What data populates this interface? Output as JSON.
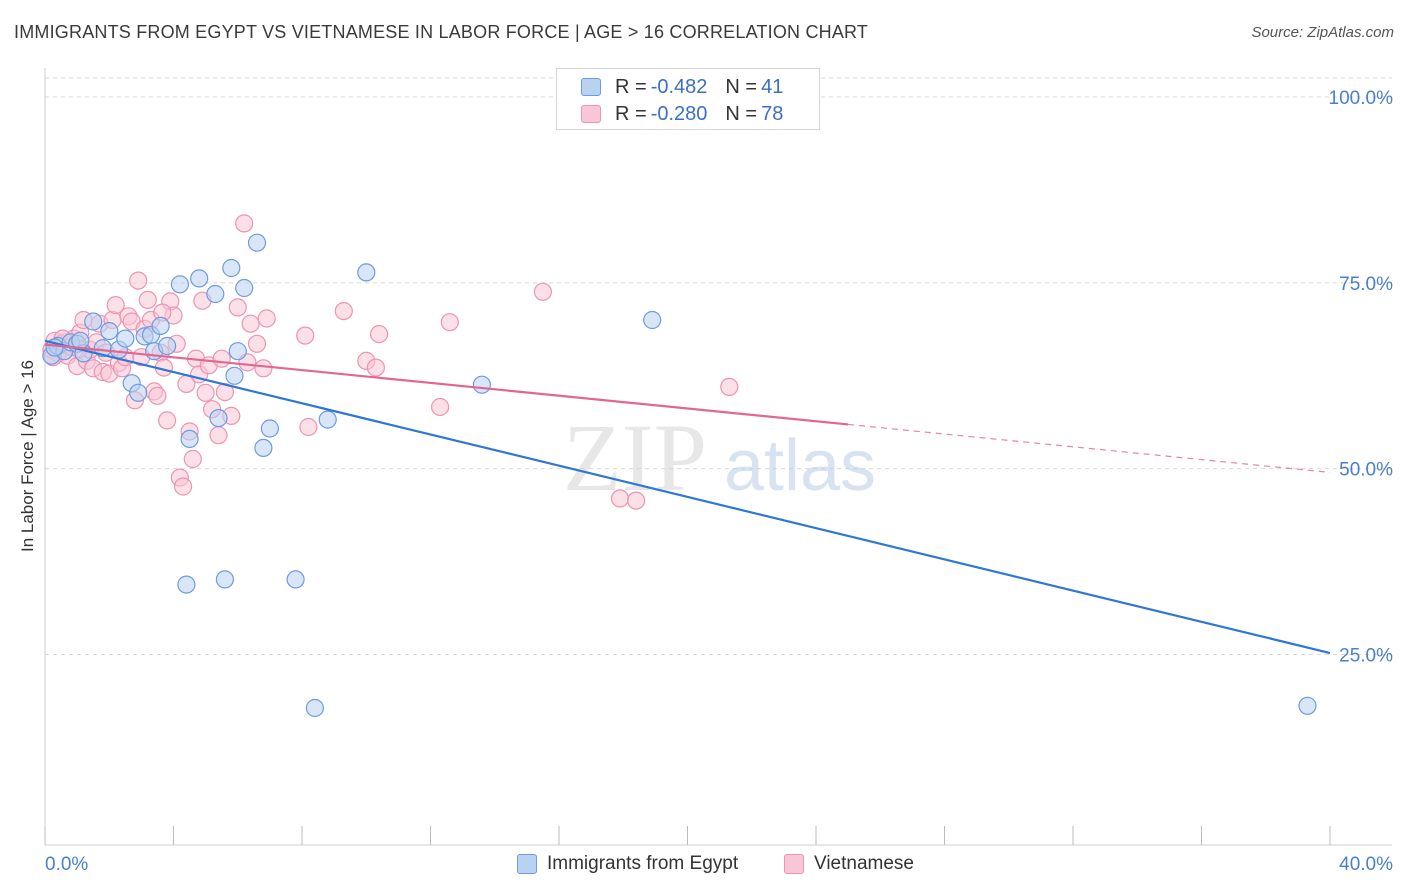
{
  "header": {
    "title": "IMMIGRANTS FROM EGYPT VS VIETNAMESE IN LABOR FORCE | AGE > 16 CORRELATION CHART",
    "source": "Source: ZipAtlas.com"
  },
  "legend": {
    "rows": [
      {
        "r_label": "R =",
        "r_value": "-0.482",
        "n_label": "N =",
        "n_value": "41"
      },
      {
        "r_label": "R =",
        "r_value": "-0.280",
        "n_label": "N =",
        "n_value": "78"
      }
    ]
  },
  "bottom_legend": {
    "egypt": "Immigrants from Egypt",
    "vietnamese": "Vietnamese"
  },
  "watermark": {
    "zip": "ZIP",
    "atlas": "atlas"
  },
  "colors": {
    "egypt_fill": "#b9d2f2",
    "egypt_stroke": "#6e9be0",
    "egypt_line": "#2f77d6",
    "viet_fill": "#f8c6d6",
    "viet_stroke": "#ee93b2",
    "viet_line": "#e2668f",
    "axis_text": "#4a7fcb",
    "grid": "#d8d8d8"
  },
  "chart_data": {
    "type": "scatter",
    "title": "IMMIGRANTS FROM EGYPT VS VIETNAMESE IN LABOR FORCE | AGE > 16 CORRELATION CHART",
    "xlabel": "",
    "ylabel": "In Labor Force | Age > 16",
    "xlim": [
      0,
      40
    ],
    "ylim": [
      0,
      102
    ],
    "x_tick_labels": [
      "0.0%",
      "40.0%"
    ],
    "y_ticks": [
      25,
      50,
      75,
      100
    ],
    "y_tick_labels": [
      "25.0%",
      "50.0%",
      "75.0%",
      "100.0%"
    ],
    "grid": true,
    "legend_position": "top-center",
    "series": [
      {
        "name": "Immigrants from Egypt",
        "R": -0.482,
        "N": 41,
        "trend": {
          "x": [
            0,
            40
          ],
          "y": [
            67.2,
            25.2
          ],
          "dashed_from": null
        },
        "points": [
          [
            0.2,
            65.2
          ],
          [
            0.4,
            66.5
          ],
          [
            0.6,
            65.8
          ],
          [
            0.8,
            67.0
          ],
          [
            1.0,
            66.8
          ],
          [
            1.2,
            65.5
          ],
          [
            1.5,
            69.8
          ],
          [
            1.8,
            66.2
          ],
          [
            2.0,
            68.5
          ],
          [
            2.3,
            66.0
          ],
          [
            2.5,
            67.5
          ],
          [
            2.7,
            61.5
          ],
          [
            2.9,
            60.2
          ],
          [
            3.1,
            67.8
          ],
          [
            3.3,
            68.0
          ],
          [
            3.4,
            65.8
          ],
          [
            3.6,
            69.2
          ],
          [
            3.8,
            66.5
          ],
          [
            4.2,
            74.8
          ],
          [
            4.5,
            54.0
          ],
          [
            4.8,
            75.6
          ],
          [
            5.3,
            73.5
          ],
          [
            5.4,
            56.8
          ],
          [
            5.8,
            77.0
          ],
          [
            5.9,
            62.5
          ],
          [
            6.0,
            65.8
          ],
          [
            6.2,
            74.3
          ],
          [
            6.6,
            80.4
          ],
          [
            6.8,
            52.8
          ],
          [
            7.0,
            55.4
          ],
          [
            8.8,
            56.6
          ],
          [
            10.0,
            76.4
          ],
          [
            13.6,
            61.3
          ],
          [
            18.9,
            70.0
          ],
          [
            4.4,
            34.4
          ],
          [
            5.6,
            35.1
          ],
          [
            7.8,
            35.1
          ],
          [
            8.4,
            17.8
          ],
          [
            39.3,
            18.1
          ],
          [
            0.3,
            66.3
          ],
          [
            1.1,
            67.2
          ]
        ]
      },
      {
        "name": "Vietnamese",
        "R": -0.28,
        "N": 78,
        "trend": {
          "x": [
            0,
            40
          ],
          "y": [
            66.7,
            49.5
          ],
          "dashed_from": 25.0
        },
        "points": [
          [
            0.2,
            66.0
          ],
          [
            0.3,
            67.2
          ],
          [
            0.4,
            65.5
          ],
          [
            0.5,
            66.8
          ],
          [
            0.6,
            67.0
          ],
          [
            0.7,
            65.2
          ],
          [
            0.8,
            66.4
          ],
          [
            0.9,
            67.5
          ],
          [
            1.0,
            63.8
          ],
          [
            1.1,
            68.3
          ],
          [
            1.2,
            70.0
          ],
          [
            1.3,
            64.5
          ],
          [
            1.4,
            66.0
          ],
          [
            1.5,
            63.5
          ],
          [
            1.6,
            67.0
          ],
          [
            1.7,
            69.5
          ],
          [
            1.8,
            63.0
          ],
          [
            1.9,
            65.6
          ],
          [
            2.0,
            62.8
          ],
          [
            2.1,
            70.0
          ],
          [
            2.2,
            72.0
          ],
          [
            2.3,
            64.2
          ],
          [
            2.4,
            63.5
          ],
          [
            2.5,
            65.0
          ],
          [
            2.6,
            70.5
          ],
          [
            2.7,
            69.8
          ],
          [
            2.8,
            59.2
          ],
          [
            2.9,
            75.3
          ],
          [
            3.0,
            65.0
          ],
          [
            3.1,
            68.8
          ],
          [
            3.2,
            72.7
          ],
          [
            3.3,
            70.0
          ],
          [
            3.4,
            60.4
          ],
          [
            3.5,
            59.8
          ],
          [
            3.6,
            65.6
          ],
          [
            3.7,
            63.6
          ],
          [
            3.8,
            56.5
          ],
          [
            3.9,
            72.5
          ],
          [
            4.0,
            70.6
          ],
          [
            4.1,
            66.8
          ],
          [
            4.2,
            48.8
          ],
          [
            4.3,
            47.6
          ],
          [
            4.4,
            61.4
          ],
          [
            4.5,
            55.0
          ],
          [
            4.6,
            51.3
          ],
          [
            4.7,
            64.8
          ],
          [
            4.8,
            62.7
          ],
          [
            4.9,
            72.6
          ],
          [
            5.0,
            60.2
          ],
          [
            5.1,
            63.9
          ],
          [
            5.2,
            58.0
          ],
          [
            5.4,
            54.5
          ],
          [
            5.5,
            64.8
          ],
          [
            5.6,
            60.3
          ],
          [
            5.8,
            57.1
          ],
          [
            6.0,
            71.7
          ],
          [
            6.2,
            83.0
          ],
          [
            6.4,
            69.5
          ],
          [
            6.6,
            66.8
          ],
          [
            6.8,
            63.5
          ],
          [
            6.9,
            70.2
          ],
          [
            8.1,
            67.9
          ],
          [
            8.2,
            55.6
          ],
          [
            9.3,
            71.2
          ],
          [
            10.0,
            64.5
          ],
          [
            10.4,
            68.1
          ],
          [
            10.3,
            63.6
          ],
          [
            12.3,
            58.3
          ],
          [
            12.6,
            69.7
          ],
          [
            15.5,
            73.8
          ],
          [
            17.9,
            46.0
          ],
          [
            18.4,
            45.7
          ],
          [
            21.3,
            61.0
          ],
          [
            0.25,
            65.0
          ],
          [
            0.55,
            67.5
          ],
          [
            1.05,
            66.1
          ],
          [
            6.3,
            64.3
          ],
          [
            3.65,
            71.0
          ]
        ]
      }
    ]
  }
}
